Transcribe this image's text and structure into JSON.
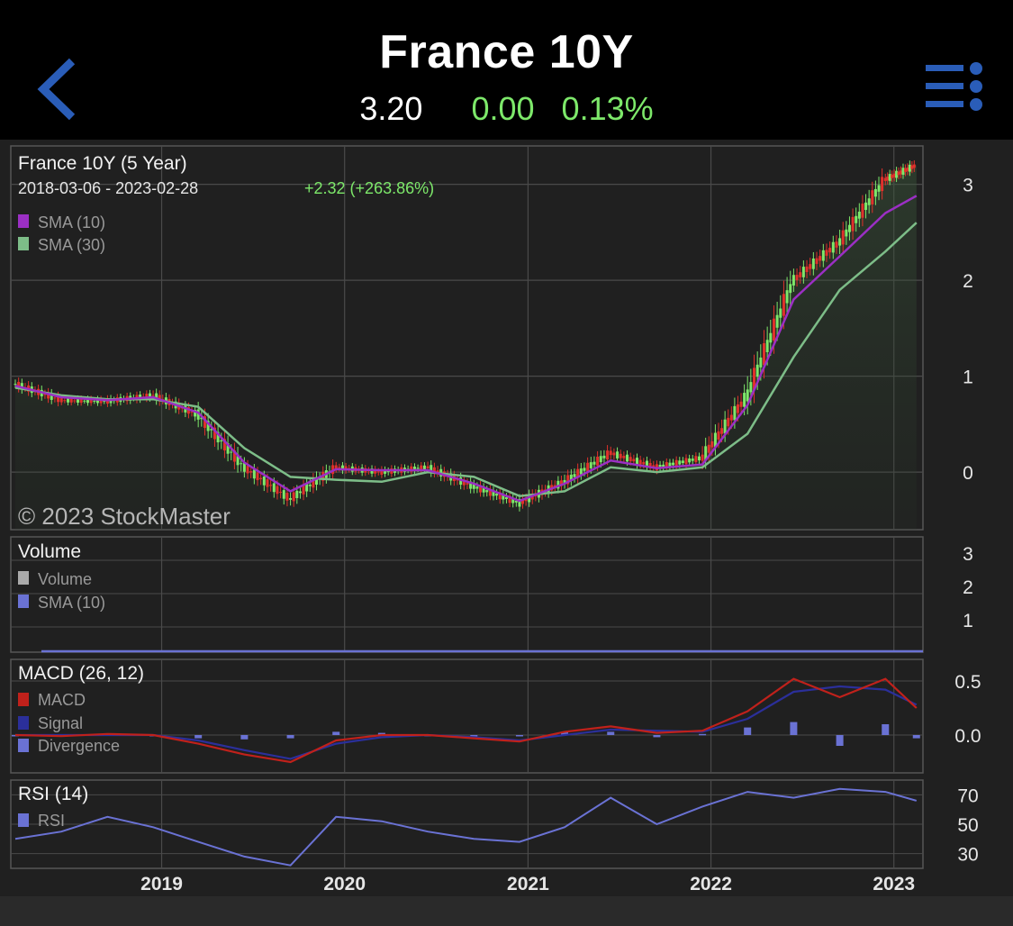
{
  "header": {
    "title": "France 10Y",
    "price": "3.20",
    "change": "0.00",
    "change_pct": "0.13%"
  },
  "colors": {
    "up": "#7de86a",
    "down": "#e0312b",
    "sma10": "#9b2fc4",
    "sma30": "#7dbd88",
    "macd": "#c0211b",
    "signal": "#2b2f9a",
    "divergence": "#6a72d4",
    "rsi": "#6a72d4",
    "accent": "#2a5db8"
  },
  "main_panel": {
    "title": "France 10Y (5 Year)",
    "range": "2018-03-06 - 2023-02-28",
    "change_text": "+2.32 (+263.86%)",
    "legend": [
      "SMA (10)",
      "SMA (30)"
    ],
    "watermark": "© 2023 StockMaster",
    "y_ticks": [
      "3",
      "2",
      "1",
      "0"
    ]
  },
  "volume_panel": {
    "title": "Volume",
    "legend": [
      "Volume",
      "SMA (10)"
    ],
    "y_ticks": [
      "3",
      "2",
      "1"
    ]
  },
  "macd_panel": {
    "title": "MACD (26, 12)",
    "legend": [
      "MACD",
      "Signal",
      "Divergence"
    ],
    "y_ticks": [
      "0.5",
      "0.0"
    ]
  },
  "rsi_panel": {
    "title": "RSI (14)",
    "legend": [
      "RSI"
    ],
    "y_ticks": [
      "70",
      "50",
      "30"
    ]
  },
  "x_ticks": [
    "2019",
    "2020",
    "2021",
    "2022",
    "2023"
  ],
  "chart_data": {
    "type": "line",
    "title": "France 10Y (5 Year)",
    "x": [
      "2018-03",
      "2018-06",
      "2018-09",
      "2018-12",
      "2019-03",
      "2019-06",
      "2019-09",
      "2019-12",
      "2020-03",
      "2020-06",
      "2020-09",
      "2020-12",
      "2021-03",
      "2021-06",
      "2021-09",
      "2021-12",
      "2022-03",
      "2022-06",
      "2022-09",
      "2022-12",
      "2023-02"
    ],
    "series": [
      {
        "name": "France 10Y",
        "values": [
          0.92,
          0.75,
          0.74,
          0.8,
          0.6,
          0.05,
          -0.28,
          0.05,
          0.0,
          0.05,
          -0.15,
          -0.32,
          -0.1,
          0.2,
          0.05,
          0.15,
          0.8,
          2.0,
          2.4,
          3.05,
          3.2
        ]
      },
      {
        "name": "SMA (10)",
        "values": [
          0.9,
          0.78,
          0.75,
          0.78,
          0.62,
          0.1,
          -0.2,
          0.03,
          0.02,
          0.02,
          -0.12,
          -0.3,
          -0.12,
          0.12,
          0.04,
          0.08,
          0.7,
          1.8,
          2.25,
          2.7,
          2.88
        ]
      },
      {
        "name": "SMA (30)",
        "values": [
          0.88,
          0.8,
          0.76,
          0.76,
          0.68,
          0.25,
          -0.05,
          -0.08,
          -0.1,
          0.0,
          -0.05,
          -0.25,
          -0.2,
          0.05,
          0.0,
          0.05,
          0.4,
          1.2,
          1.9,
          2.3,
          2.6
        ]
      }
    ],
    "ylim": [
      -0.6,
      3.4
    ],
    "macd": {
      "ylim": [
        -0.35,
        0.7
      ],
      "macd": [
        0,
        -0.01,
        0.01,
        0.0,
        -0.08,
        -0.18,
        -0.25,
        -0.05,
        0.0,
        0.0,
        -0.03,
        -0.06,
        0.03,
        0.08,
        0.02,
        0.04,
        0.22,
        0.52,
        0.35,
        0.52,
        0.25
      ],
      "signal": [
        0,
        0,
        0,
        0,
        -0.05,
        -0.14,
        -0.22,
        -0.08,
        -0.02,
        0.0,
        -0.02,
        -0.05,
        0.0,
        0.05,
        0.04,
        0.03,
        0.15,
        0.4,
        0.45,
        0.42,
        0.28
      ]
    },
    "rsi": {
      "ylim": [
        20,
        80
      ],
      "values": [
        40,
        45,
        55,
        48,
        38,
        28,
        22,
        55,
        52,
        45,
        40,
        38,
        48,
        68,
        50,
        62,
        72,
        68,
        74,
        72,
        66
      ],
      "levels": [
        70,
        50,
        30
      ]
    }
  }
}
